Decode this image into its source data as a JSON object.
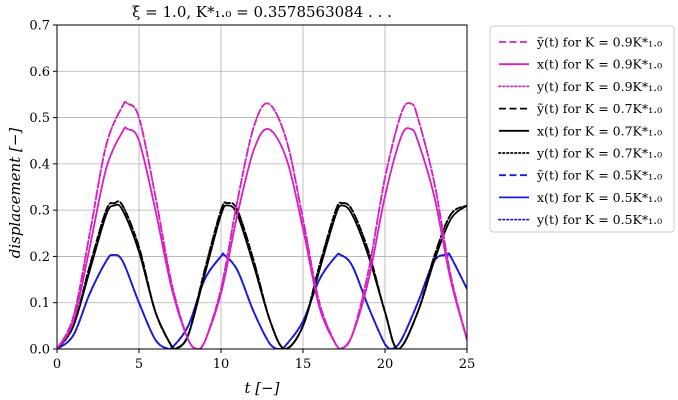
{
  "chart_data": {
    "type": "line",
    "title": "ξ = 1.0,    K*₁.₀ = 0.3578563084 . . .",
    "xlabel": "t    [−]",
    "ylabel": "displacement    [−]",
    "xlim": [
      0,
      25
    ],
    "ylim": [
      0,
      0.7
    ],
    "x_ticks": [
      0,
      5,
      10,
      15,
      20,
      25
    ],
    "y_ticks": [
      0.0,
      0.1,
      0.2,
      0.3,
      0.4,
      0.5,
      0.6,
      0.7
    ],
    "grid": true,
    "legend_position": "outside-right",
    "colors": {
      "K09": "#d91ec4",
      "K07": "#000000",
      "K05": "#1c1cdc"
    },
    "series": [
      {
        "name": "ỹ(t) for K = 0.9K*₁.₀",
        "color": "#d91ec4",
        "dash": "dashed",
        "x": [
          0,
          1,
          2,
          3,
          4,
          4.3,
          5,
          6,
          7,
          8,
          8.6,
          9,
          10,
          11,
          12,
          12.9,
          14,
          15,
          16,
          17,
          17.3,
          18,
          19,
          20,
          21,
          21.6,
          22,
          23,
          24,
          25
        ],
        "y": [
          0,
          0.07,
          0.25,
          0.44,
          0.525,
          0.53,
          0.5,
          0.33,
          0.14,
          0.02,
          0,
          0.015,
          0.13,
          0.32,
          0.48,
          0.53,
          0.45,
          0.28,
          0.1,
          0.01,
          0,
          0.03,
          0.17,
          0.37,
          0.51,
          0.53,
          0.5,
          0.36,
          0.16,
          0.02
        ]
      },
      {
        "name": "x(t) for K = 0.9K*₁.₀",
        "color": "#d91ec4",
        "dash": "solid",
        "x": [
          0,
          1,
          2,
          3,
          4,
          4.3,
          5,
          6,
          7,
          8,
          8.6,
          9,
          10,
          11,
          12,
          12.9,
          14,
          15,
          16,
          17,
          17.3,
          18,
          19,
          20,
          21,
          21.6,
          22,
          23,
          24,
          25
        ],
        "y": [
          0,
          0.06,
          0.22,
          0.39,
          0.47,
          0.475,
          0.45,
          0.3,
          0.13,
          0.02,
          0,
          0.015,
          0.12,
          0.29,
          0.43,
          0.475,
          0.41,
          0.26,
          0.09,
          0.01,
          0,
          0.03,
          0.15,
          0.33,
          0.46,
          0.475,
          0.45,
          0.33,
          0.15,
          0.02
        ]
      },
      {
        "name": "y(t) for K = 0.9K*₁.₀",
        "color": "#d91ec4",
        "dash": "dotted",
        "x": [
          0,
          1,
          2,
          3,
          4,
          4.3,
          5,
          6,
          7,
          8,
          8.6,
          9,
          10,
          11,
          12,
          12.9,
          14,
          15,
          16,
          17,
          17.3,
          18,
          19,
          20,
          21,
          21.6,
          22,
          23,
          24,
          25
        ],
        "y": [
          0,
          0.07,
          0.25,
          0.44,
          0.525,
          0.53,
          0.5,
          0.33,
          0.14,
          0.02,
          0,
          0.015,
          0.13,
          0.32,
          0.48,
          0.53,
          0.45,
          0.28,
          0.1,
          0.01,
          0,
          0.03,
          0.17,
          0.37,
          0.51,
          0.53,
          0.5,
          0.36,
          0.16,
          0.02
        ]
      },
      {
        "name": "ỹ(t) for K = 0.7K*₁.₀",
        "color": "#000000",
        "dash": "dashed",
        "x": [
          0,
          1,
          2,
          3,
          3.5,
          4,
          5,
          6,
          7,
          7.2,
          8,
          9,
          10,
          10.4,
          11,
          12,
          13,
          13.9,
          15,
          16,
          17,
          17.4,
          18,
          19,
          20,
          20.8,
          22,
          23,
          24,
          25
        ],
        "y": [
          0,
          0.05,
          0.18,
          0.3,
          0.315,
          0.31,
          0.22,
          0.08,
          0.005,
          0,
          0.03,
          0.17,
          0.3,
          0.315,
          0.3,
          0.19,
          0.06,
          0,
          0.05,
          0.18,
          0.3,
          0.315,
          0.3,
          0.21,
          0.08,
          0,
          0.08,
          0.2,
          0.29,
          0.31
        ]
      },
      {
        "name": "x(t) for K = 0.7K*₁.₀",
        "color": "#000000",
        "dash": "solid",
        "x": [
          0,
          1,
          2,
          3,
          3.5,
          4,
          5,
          6,
          7,
          7.2,
          8,
          9,
          10,
          10.4,
          11,
          12,
          13,
          13.9,
          15,
          16,
          17,
          17.4,
          18,
          19,
          20,
          20.8,
          22,
          23,
          24,
          25
        ],
        "y": [
          0,
          0.05,
          0.17,
          0.29,
          0.31,
          0.3,
          0.21,
          0.08,
          0.005,
          0,
          0.03,
          0.16,
          0.29,
          0.31,
          0.29,
          0.18,
          0.06,
          0,
          0.05,
          0.17,
          0.29,
          0.31,
          0.29,
          0.2,
          0.08,
          0,
          0.08,
          0.19,
          0.28,
          0.31
        ]
      },
      {
        "name": "y(t) for K = 0.7K*₁.₀",
        "color": "#000000",
        "dash": "dotted",
        "x": [
          0,
          1,
          2,
          3,
          3.5,
          4,
          5,
          6,
          7,
          7.2,
          8,
          9,
          10,
          10.4,
          11,
          12,
          13,
          13.9,
          15,
          16,
          17,
          17.4,
          18,
          19,
          20,
          20.8,
          22,
          23,
          24,
          25
        ],
        "y": [
          0,
          0.05,
          0.18,
          0.3,
          0.315,
          0.31,
          0.22,
          0.08,
          0.005,
          0,
          0.03,
          0.17,
          0.3,
          0.315,
          0.3,
          0.19,
          0.06,
          0,
          0.05,
          0.18,
          0.3,
          0.315,
          0.3,
          0.21,
          0.08,
          0,
          0.08,
          0.2,
          0.29,
          0.31
        ]
      },
      {
        "name": "ỹ(t) for K = 0.5K*₁.₀",
        "color": "#1c1cdc",
        "dash": "dashed",
        "x": [
          0,
          1,
          2,
          3,
          3.4,
          4,
          5,
          6,
          6.8,
          7,
          8,
          9,
          10,
          10.2,
          11,
          12,
          13,
          13.6,
          14,
          15,
          16,
          17,
          17.3,
          18,
          19,
          20,
          20.4,
          21,
          22,
          23,
          23.8,
          24,
          25
        ],
        "y": [
          0,
          0.03,
          0.12,
          0.19,
          0.203,
          0.19,
          0.1,
          0.02,
          0,
          0.002,
          0.05,
          0.15,
          0.2,
          0.203,
          0.17,
          0.08,
          0.01,
          0,
          0.01,
          0.06,
          0.15,
          0.2,
          0.203,
          0.18,
          0.09,
          0.01,
          0,
          0.02,
          0.1,
          0.19,
          0.203,
          0.2,
          0.13
        ]
      },
      {
        "name": "x(t) for K = 0.5K*₁.₀",
        "color": "#1c1cdc",
        "dash": "solid",
        "x": [
          0,
          1,
          2,
          3,
          3.4,
          4,
          5,
          6,
          6.8,
          7,
          8,
          9,
          10,
          10.2,
          11,
          12,
          13,
          13.6,
          14,
          15,
          16,
          17,
          17.3,
          18,
          19,
          20,
          20.4,
          21,
          22,
          23,
          23.8,
          24,
          25
        ],
        "y": [
          0,
          0.03,
          0.12,
          0.19,
          0.203,
          0.19,
          0.1,
          0.02,
          0,
          0.002,
          0.05,
          0.15,
          0.2,
          0.203,
          0.17,
          0.08,
          0.01,
          0,
          0.01,
          0.06,
          0.15,
          0.2,
          0.203,
          0.18,
          0.09,
          0.01,
          0,
          0.02,
          0.1,
          0.19,
          0.203,
          0.2,
          0.13
        ]
      },
      {
        "name": "y(t) for K = 0.5K*₁.₀",
        "color": "#1c1cdc",
        "dash": "dotted",
        "x": [
          0,
          1,
          2,
          3,
          3.4,
          4,
          5,
          6,
          6.8,
          7,
          8,
          9,
          10,
          10.2,
          11,
          12,
          13,
          13.6,
          14,
          15,
          16,
          17,
          17.3,
          18,
          19,
          20,
          20.4,
          21,
          22,
          23,
          23.8,
          24,
          25
        ],
        "y": [
          0,
          0.03,
          0.12,
          0.19,
          0.203,
          0.19,
          0.1,
          0.02,
          0,
          0.002,
          0.05,
          0.15,
          0.2,
          0.203,
          0.17,
          0.08,
          0.01,
          0,
          0.01,
          0.06,
          0.15,
          0.2,
          0.203,
          0.18,
          0.09,
          0.01,
          0,
          0.02,
          0.1,
          0.19,
          0.203,
          0.2,
          0.13
        ]
      }
    ]
  }
}
